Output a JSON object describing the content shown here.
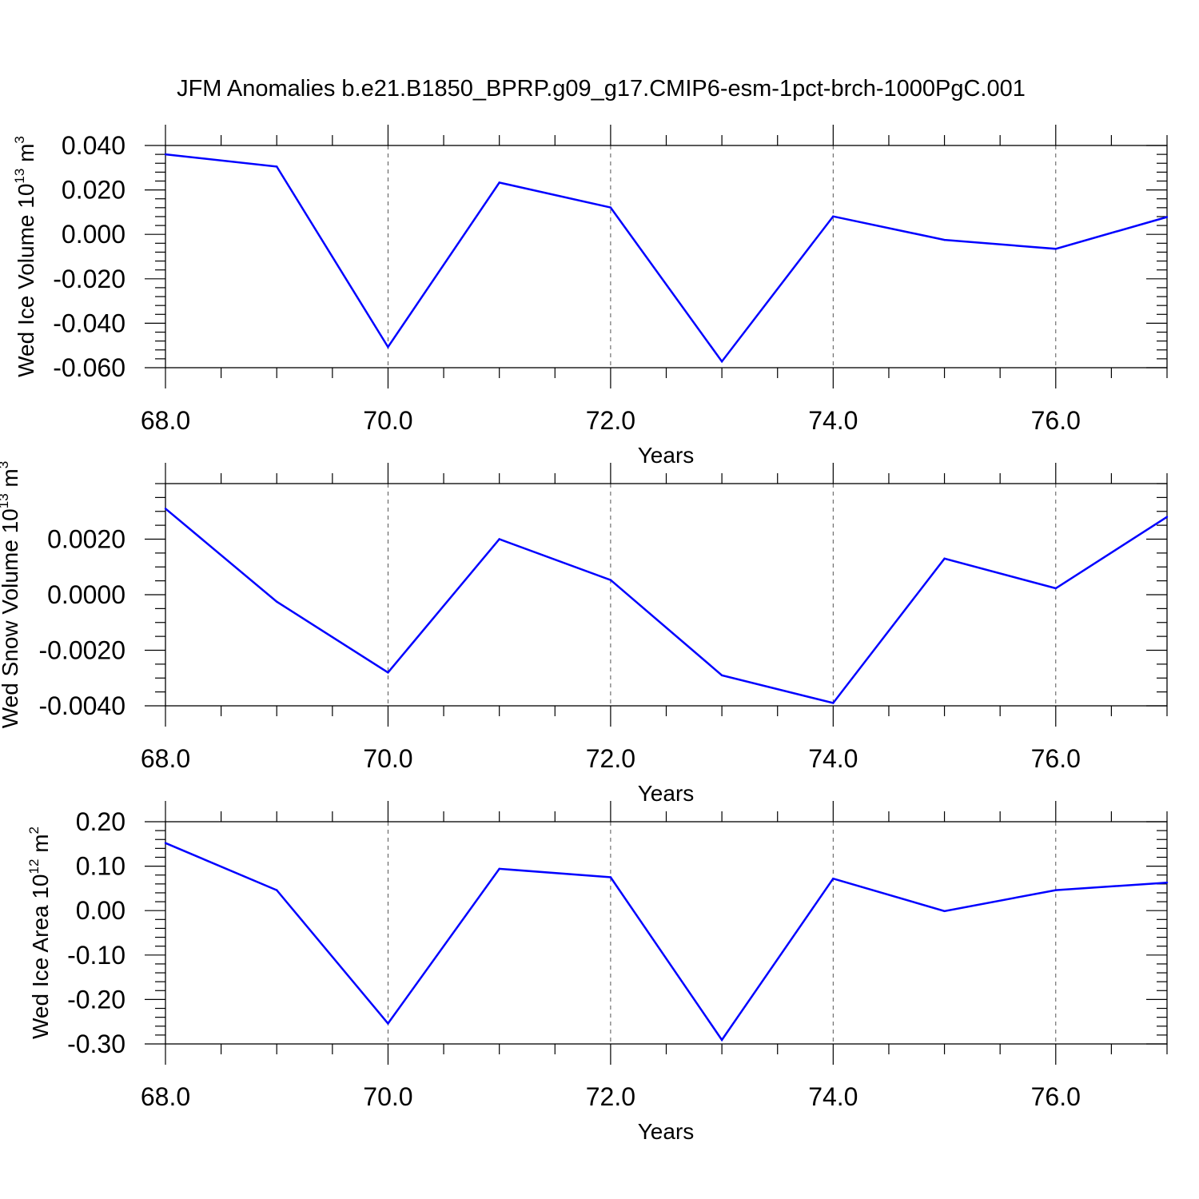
{
  "title": "JFM Anomalies b.e21.B1850_BPRP.g09_g17.CMIP6-esm-1pct-brch-1000PgC.001",
  "colors": {
    "series": "#0000ff",
    "grid": "#555555"
  },
  "chart_data": [
    {
      "type": "line",
      "ylabel": "Wed Ice Volume",
      "ylabel_unit_base": "10",
      "ylabel_unit_exp": "13",
      "ylabel_unit_tail": " m",
      "ylabel_unit_tail_exp": "3",
      "xlabel": "Years",
      "xlim": [
        68,
        77
      ],
      "ylim": [
        -0.06,
        0.04
      ],
      "x_ticks": [
        68,
        70,
        72,
        74,
        76
      ],
      "x_tick_labels": [
        "68.0",
        "70.0",
        "72.0",
        "74.0",
        "76.0"
      ],
      "y_ticks": [
        -0.06,
        -0.04,
        -0.02,
        0.0,
        0.02,
        0.04
      ],
      "y_tick_labels": [
        "-0.060",
        "-0.040",
        "-0.020",
        "0.000",
        "0.020",
        "0.040"
      ],
      "y_minor_step": 0.004,
      "grid": "vertical-dashed",
      "x": [
        68,
        69,
        70,
        71,
        72,
        73,
        74,
        75,
        76,
        77
      ],
      "y": [
        0.036,
        0.0305,
        -0.0507,
        0.0233,
        0.0121,
        -0.0572,
        0.0081,
        -0.0025,
        -0.0065,
        0.0078
      ]
    },
    {
      "type": "line",
      "ylabel": "Wed Snow Volume",
      "ylabel_unit_base": "10",
      "ylabel_unit_exp": "13",
      "ylabel_unit_tail": " m",
      "ylabel_unit_tail_exp": "3",
      "xlabel": "Years",
      "xlim": [
        68,
        77
      ],
      "ylim": [
        -0.004,
        0.004
      ],
      "x_ticks": [
        68,
        70,
        72,
        74,
        76
      ],
      "x_tick_labels": [
        "68.0",
        "70.0",
        "72.0",
        "74.0",
        "76.0"
      ],
      "y_ticks": [
        -0.004,
        -0.002,
        0.0,
        0.002
      ],
      "y_tick_labels": [
        "-0.0040",
        "-0.0020",
        "0.0000",
        "0.0020"
      ],
      "y_minor_step": 0.0005,
      "grid": "vertical-dashed",
      "x": [
        68,
        69,
        70,
        71,
        72,
        73,
        74,
        75,
        76,
        77
      ],
      "y": [
        0.0031,
        -0.00025,
        -0.0028,
        0.002,
        0.00053,
        -0.0029,
        -0.0039,
        0.0013,
        0.00023,
        0.0028
      ]
    },
    {
      "type": "line",
      "ylabel": "Wed Ice Area",
      "ylabel_unit_base": "10",
      "ylabel_unit_exp": "12",
      "ylabel_unit_tail": " m",
      "ylabel_unit_tail_exp": "2",
      "xlabel": "Years",
      "xlim": [
        68,
        77
      ],
      "ylim": [
        -0.3,
        0.2
      ],
      "x_ticks": [
        68,
        70,
        72,
        74,
        76
      ],
      "x_tick_labels": [
        "68.0",
        "70.0",
        "72.0",
        "74.0",
        "76.0"
      ],
      "y_ticks": [
        -0.3,
        -0.2,
        -0.1,
        0.0,
        0.1,
        0.2
      ],
      "y_tick_labels": [
        "-0.30",
        "-0.20",
        "-0.10",
        "0.00",
        "0.10",
        "0.20"
      ],
      "y_minor_step": 0.02,
      "grid": "vertical-dashed",
      "x": [
        68,
        69,
        70,
        71,
        72,
        73,
        74,
        75,
        76,
        77
      ],
      "y": [
        0.152,
        0.046,
        -0.254,
        0.094,
        0.075,
        -0.291,
        0.072,
        -0.001,
        0.046,
        0.063
      ]
    }
  ]
}
